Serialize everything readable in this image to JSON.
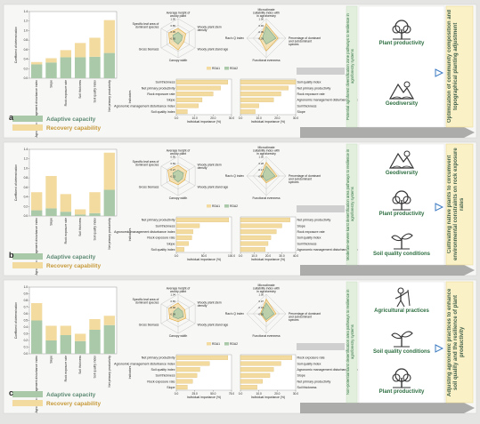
{
  "colors": {
    "adaptive": "#a9c9a8",
    "recovery": "#f3dba0",
    "radar1": "#f3dba0",
    "radar2": "#a9c9a8",
    "radar_line": "#e1a73a",
    "green": "#2d6e40",
    "arrow": "#8c8c8c"
  },
  "legend": {
    "adaptive": "Adaptive capacity",
    "recovery": "Recovery capability"
  },
  "ylabel": "Coefficient of determination",
  "rda_legend": [
    "RDA1",
    "RDA2"
  ],
  "panels": [
    {
      "label": "a",
      "radar1": {
        "axes": [
          "Average height of woody plant",
          "Woody plant stem density",
          "Woody plant stand age",
          "Canopy width",
          "Gross biomass",
          "Specific leaf area of dominant species"
        ],
        "ticks": [
          "1.00",
          "0.85",
          "0.35",
          "-0.05"
        ]
      },
      "radar2": {
        "axes": [
          "Microclimate suitability index with in agroforestry",
          "Percentage of dominant and subdominant species",
          "Functional evenness",
          "Rao's Q index"
        ],
        "ticks": [
          "1.00",
          "0.93",
          "-0.05",
          "-0.26"
        ]
      },
      "imp_left": [
        "Soil thickness",
        "Net primary productivity",
        "Rock exposure rate",
        "Slope",
        "Agronomic management disturbance index",
        "Soil quality index"
      ],
      "imp_left_axis": [
        "0.0",
        "10.0",
        "20.0",
        "30.0"
      ],
      "imp_right": [
        "Soil quality index",
        "Net primary productivity",
        "Rock exposure rate",
        "Agronomic management disturbance index",
        "Soil thickness",
        "Slope"
      ],
      "imp_right_axis": [
        "0.0",
        "10.0",
        "20.0",
        "30.0"
      ],
      "imp_xlabel": "Individual importance (%)",
      "imp_ylabel": "Indicators",
      "arrow_text": "Potential agroforest diversification zone pathways to resilience in agroforestry systems",
      "outcome": "Optimization of community composition and topographical planting adjustment",
      "icons": [
        {
          "name": "tree-icon",
          "label": "Plant productivity"
        },
        {
          "name": "mountain-tree-icon",
          "label": "Geodiversity"
        }
      ]
    },
    {
      "label": "b",
      "radar1": {
        "axes": [
          "Average height of woody plant",
          "Woody plant stem density",
          "Woody plant stand age",
          "Canopy width",
          "Gross biomass",
          "Specific leaf area of dominant species"
        ],
        "ticks": [
          "0.95",
          "0.69",
          "0.27",
          "-0.15"
        ]
      },
      "radar2": {
        "axes": [
          "Microclimate suitability index with in agroforestry",
          "Percentage of dominant and subdominant species",
          "Functional evenness",
          "Rao's Q index"
        ],
        "ticks": [
          "1.00",
          "0.28",
          "-0.17",
          "-0.85"
        ]
      },
      "imp_left": [
        "Net primary productivity",
        "Soil thickness",
        "Agronomic management disturbance index",
        "Rock exposure rate",
        "Slope",
        "Soil quality index"
      ],
      "imp_left_axis": [
        "0.0",
        "50.0",
        "100.0"
      ],
      "imp_right": [
        "Net primary productivity",
        "Slope",
        "Rock exposure rate",
        "Soil quality index",
        "Soil thickness",
        "Agronomic management disturbance index"
      ],
      "imp_right_axis": [
        "0.0",
        "10.0",
        "20.0",
        "30.0",
        "40.0"
      ],
      "imp_xlabel": "Individual importance (%)",
      "imp_ylabel": "Indicators",
      "arrow_text": "Moderate-severe karst desertification area pathways to resilience in agroforestry systems",
      "outcome": "Cultivating native plants to circumvent environmental constraints on rock exposure rates",
      "icons": [
        {
          "name": "mountain-tree-icon",
          "label": "Geodiversity"
        },
        {
          "name": "tree-icon",
          "label": "Plant productivity"
        },
        {
          "name": "sprout-icon",
          "label": "Soil quality conditions"
        }
      ]
    },
    {
      "label": "c",
      "radar1": {
        "axes": [
          "Average height of woody plant",
          "Woody plant stem density",
          "Woody plant stand age",
          "Canopy width",
          "Gross biomass",
          "Specific leaf area of dominant species"
        ],
        "ticks": [
          "1.04",
          "0.65",
          "-0.06",
          "-0.38"
        ]
      },
      "radar2": {
        "axes": [
          "Microclimate suitability index with in agroforestry",
          "Percentage of dominant and subdominant species",
          "Functional evenness",
          "Rao's Q index"
        ],
        "ticks": [
          "1.00",
          "0.37",
          "-0.01",
          "-0.50"
        ]
      },
      "imp_left": [
        "Net primary productivity",
        "Agronomic management disturbance index",
        "Soil quality index",
        "Soil thickness",
        "Rock exposure rate",
        "Slope"
      ],
      "imp_left_axis": [
        "0.0",
        "25.0",
        "50.0",
        "75.0"
      ],
      "imp_right": [
        "Rock exposure rate",
        "Soil quality index",
        "Agronomic management disturbance index",
        "Slope",
        "Net primary productivity",
        "Soil thickness"
      ],
      "imp_right_axis": [
        "0.0",
        "10.0",
        "20.0",
        "30.0"
      ],
      "imp_xlabel": "Individual importance (%)",
      "imp_ylabel": "Indicators",
      "arrow_text": "Non-potential karst desertification area pathways to resilience in agroforestry systems",
      "outcome": "Adjusting agronomic practices to enhance soil quality and the resilience of plant productivity",
      "icons": [
        {
          "name": "farmer-icon",
          "label": "Agricultural practices"
        },
        {
          "name": "sprout-icon",
          "label": "Soil quality conditions"
        },
        {
          "name": "tree-icon",
          "label": "Plant productivity"
        }
      ]
    }
  ],
  "chart_data": [
    {
      "type": "bar",
      "panel": "a",
      "stacked": true,
      "categories": [
        "Agronomic management disturbance index",
        "Slope",
        "Rock exposure rate",
        "Soil thickness",
        "Soil quality index",
        "Net primary productivity"
      ],
      "series": [
        {
          "name": "Adaptive capacity",
          "values": [
            0.29,
            0.33,
            0.44,
            0.44,
            0.45,
            0.53
          ]
        },
        {
          "name": "Recovery capability",
          "values": [
            0.05,
            0.09,
            0.15,
            0.3,
            0.4,
            0.69
          ]
        }
      ],
      "ylim": [
        0,
        1.4
      ]
    },
    {
      "type": "radar",
      "panel": "a",
      "values": {
        "RDA1": [
          0.5,
          0.45,
          0.35,
          0.6,
          0.5,
          0.55
        ],
        "RDA2": [
          0.3,
          0.25,
          0.2,
          0.3,
          0.25,
          0.3
        ]
      }
    },
    {
      "type": "radar",
      "panel": "a",
      "values": {
        "RDA1": [
          0.75,
          0.6,
          0.65,
          0.35
        ],
        "RDA2": [
          0.6,
          0.5,
          0.3,
          0.2
        ]
      }
    },
    {
      "type": "bar",
      "panel": "a",
      "orientation": "horizontal",
      "values": [
        28,
        24,
        20,
        14,
        12,
        6
      ]
    },
    {
      "type": "bar",
      "panel": "a",
      "orientation": "horizontal",
      "values": [
        30,
        26,
        22,
        18,
        10,
        8
      ]
    },
    {
      "type": "bar",
      "panel": "b",
      "stacked": true,
      "categories": [
        "Agronomic management disturbance index",
        "Slope",
        "Rock exposure rate",
        "Soil thickness",
        "Soil quality index",
        "Net primary productivity"
      ],
      "series": [
        {
          "name": "Adaptive capacity",
          "values": [
            0.12,
            0.16,
            0.09,
            0.03,
            0.06,
            0.55
          ]
        },
        {
          "name": "Recovery capability",
          "values": [
            0.38,
            0.68,
            0.37,
            0.11,
            0.44,
            0.78
          ]
        }
      ],
      "ylim": [
        0,
        1.4
      ]
    },
    {
      "type": "radar",
      "panel": "b",
      "values": {
        "RDA1": [
          0.55,
          0.5,
          0.4,
          0.45,
          0.5,
          0.6
        ],
        "RDA2": [
          0.3,
          0.3,
          0.25,
          0.3,
          0.25,
          0.3
        ]
      }
    },
    {
      "type": "radar",
      "panel": "b",
      "values": {
        "RDA1": [
          0.7,
          0.55,
          0.35,
          0.3
        ],
        "RDA2": [
          0.5,
          0.45,
          0.25,
          0.2
        ]
      }
    },
    {
      "type": "bar",
      "panel": "b",
      "orientation": "horizontal",
      "values": [
        95,
        42,
        30,
        28,
        22,
        14
      ]
    },
    {
      "type": "bar",
      "panel": "b",
      "orientation": "horizontal",
      "values": [
        36,
        30,
        26,
        22,
        20,
        18
      ]
    },
    {
      "type": "bar",
      "panel": "c",
      "stacked": true,
      "categories": [
        "Agronomic management disturbance index",
        "Slope",
        "Rock exposure rate",
        "Soil thickness",
        "Soil quality index",
        "Net primary productivity"
      ],
      "series": [
        {
          "name": "Adaptive capacity",
          "values": [
            0.5,
            0.2,
            0.28,
            0.19,
            0.36,
            0.43
          ]
        },
        {
          "name": "Recovery capability",
          "values": [
            0.26,
            0.22,
            0.14,
            0.11,
            0.16,
            0.14
          ]
        }
      ],
      "ylim": [
        0,
        1.0
      ]
    },
    {
      "type": "radar",
      "panel": "c",
      "values": {
        "RDA1": [
          0.55,
          0.4,
          0.45,
          0.4,
          0.5,
          0.55
        ],
        "RDA2": [
          0.3,
          0.25,
          0.3,
          0.25,
          0.3,
          0.25
        ]
      }
    },
    {
      "type": "radar",
      "panel": "c",
      "values": {
        "RDA1": [
          0.75,
          0.5,
          0.4,
          0.3
        ],
        "RDA2": [
          0.55,
          0.4,
          0.3,
          0.25
        ]
      }
    },
    {
      "type": "bar",
      "panel": "c",
      "orientation": "horizontal",
      "values": [
        70,
        45,
        32,
        28,
        22,
        15
      ]
    },
    {
      "type": "bar",
      "panel": "c",
      "orientation": "horizontal",
      "values": [
        28,
        22,
        18,
        16,
        12,
        9
      ]
    }
  ]
}
